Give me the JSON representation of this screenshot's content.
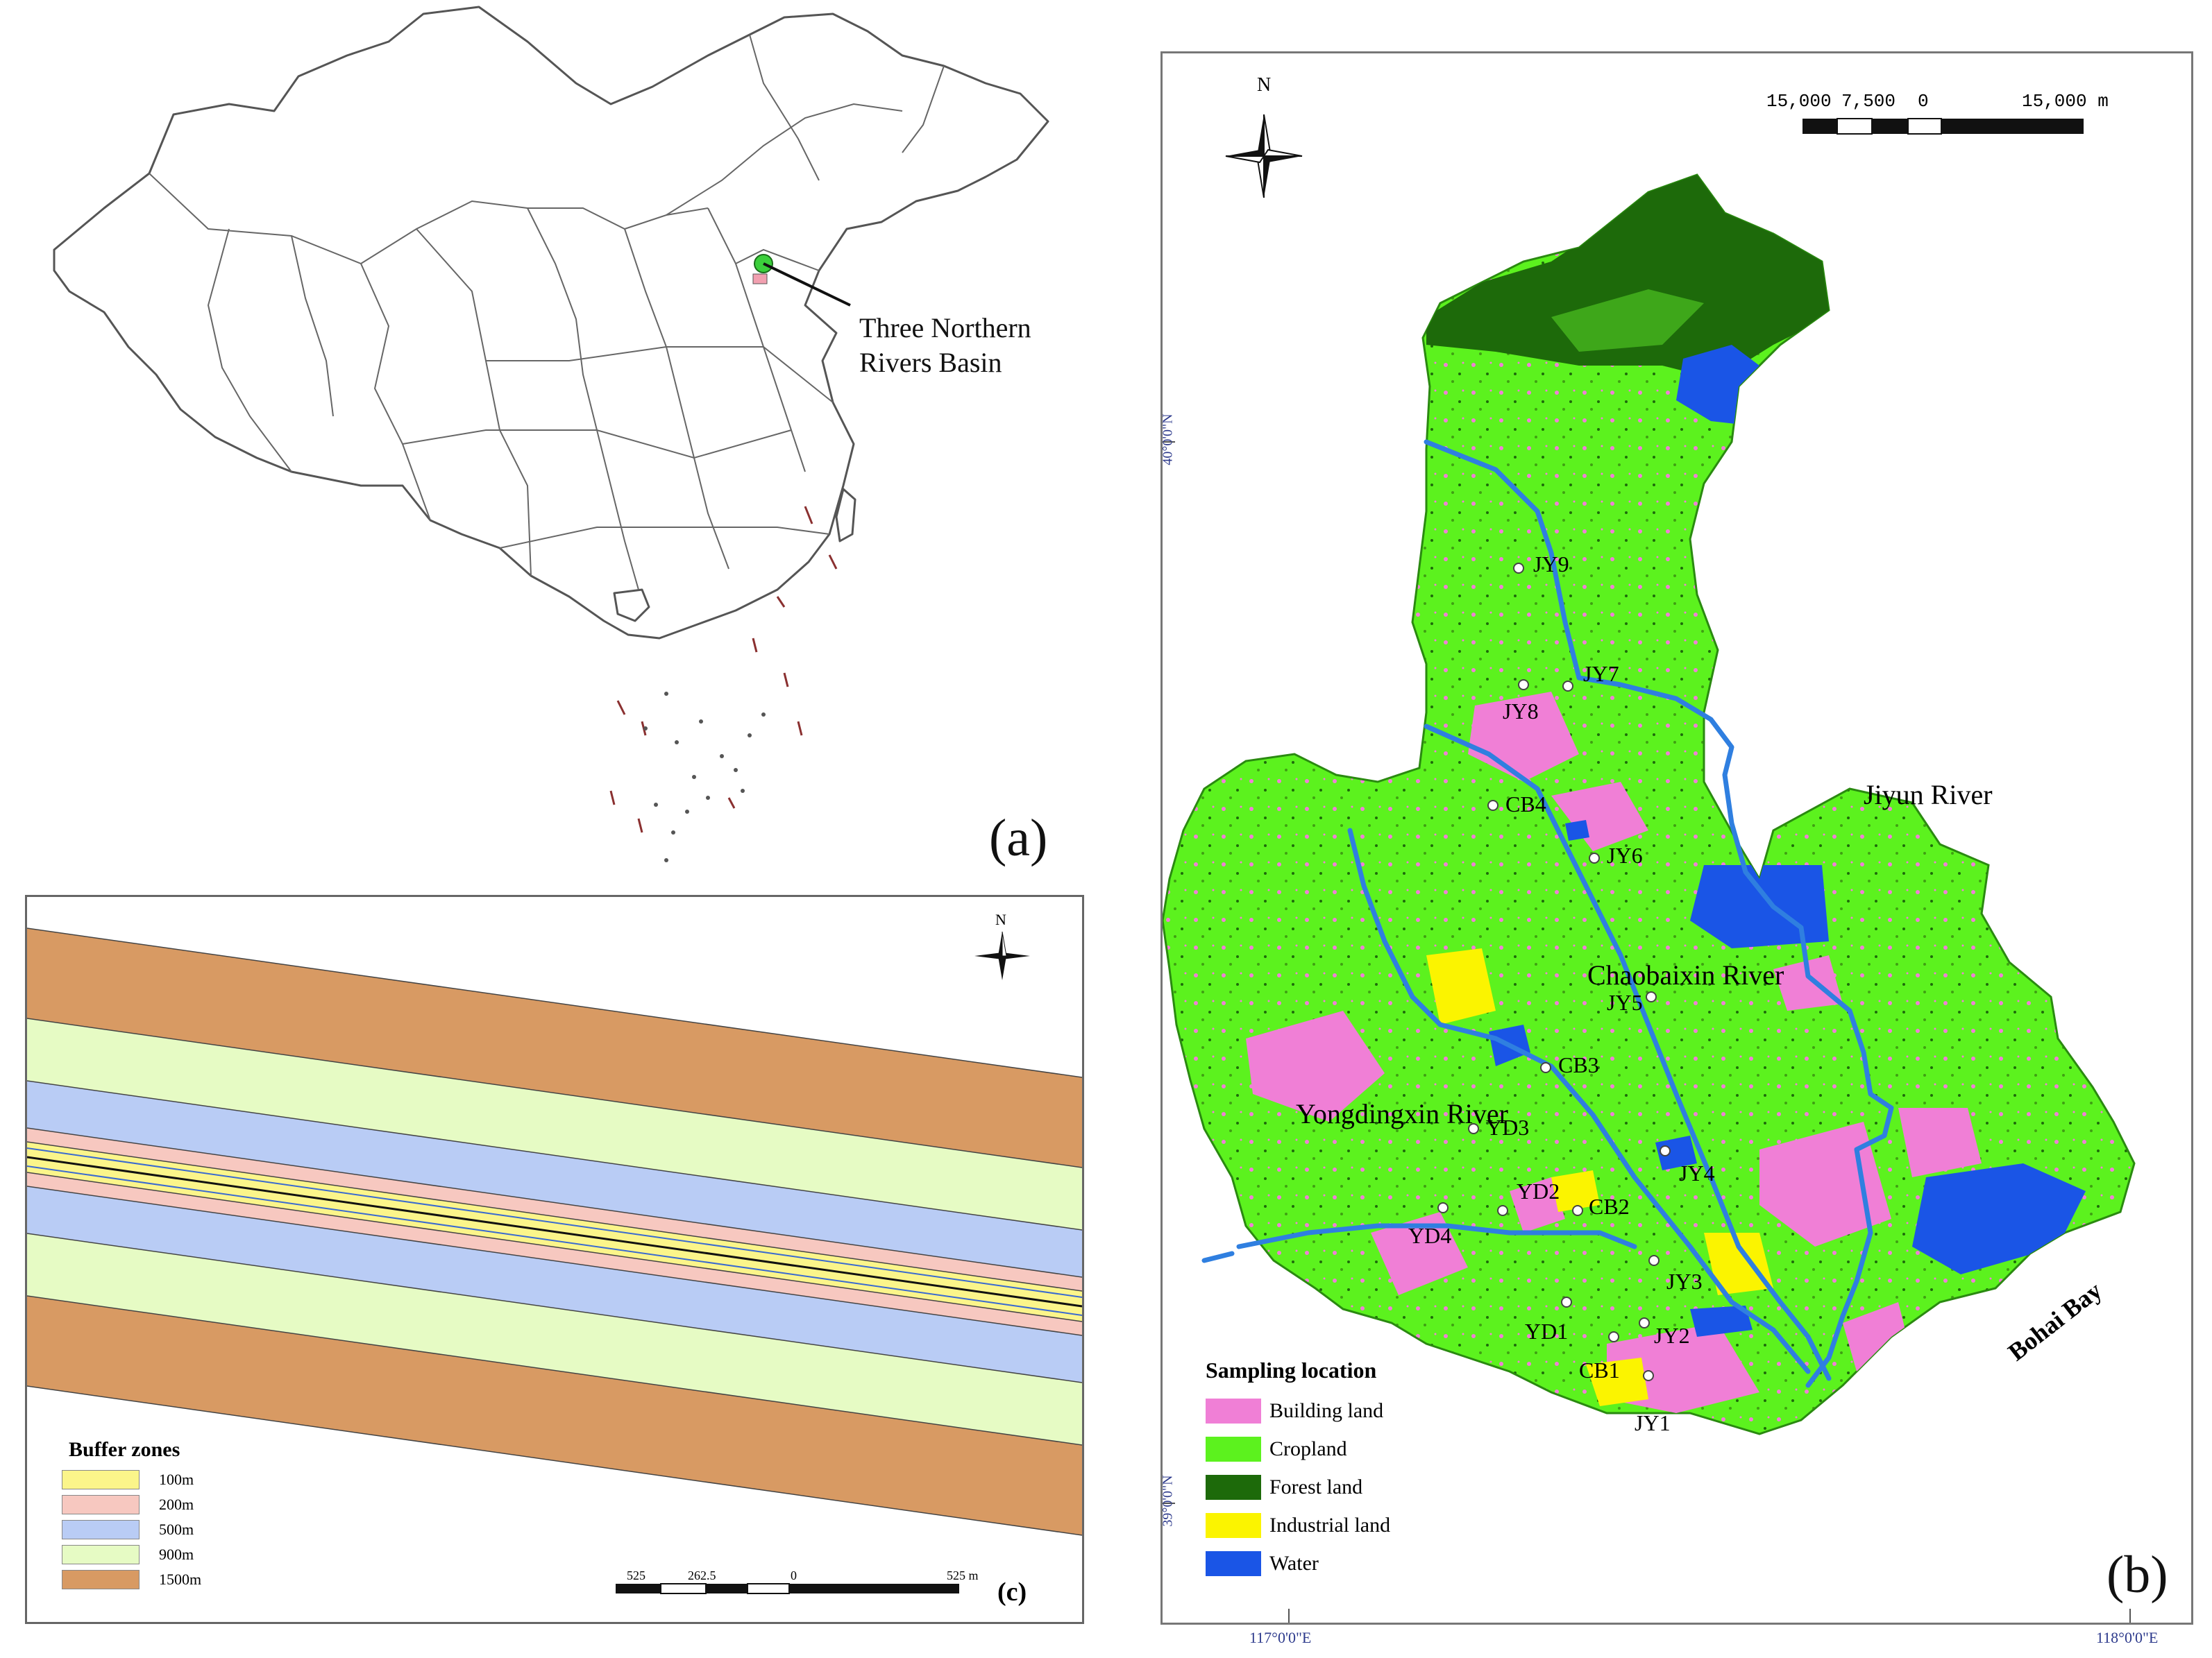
{
  "panel_a": {
    "label": "(a)",
    "annotation_line1": "Three Northern",
    "annotation_line2": "Rivers Basin"
  },
  "panel_b": {
    "label": "(b)",
    "north": "N",
    "scale_labels": [
      "15,000",
      "7,500",
      "0",
      "15,000 m"
    ],
    "lat_labels": [
      "40°0'0\"N",
      "39°0'0\"N"
    ],
    "lon_labels": [
      "117°0'0\"E",
      "118°0'0\"E"
    ],
    "rivers": [
      "Jiyun River",
      "Chaobaixin River",
      "Yongdingxin River"
    ],
    "bay": "Bohai Bay",
    "sites": [
      "JY9",
      "JY7",
      "JY8",
      "CB4",
      "JY6",
      "JY5",
      "CB3",
      "YD3",
      "YD2",
      "CB2",
      "JY4",
      "YD4",
      "JY3",
      "YD1",
      "JY2",
      "CB1",
      "JY1"
    ],
    "legend": {
      "title": "Sampling location",
      "items": [
        {
          "label": "Building land",
          "color": "#f07fd6"
        },
        {
          "label": "Cropland",
          "color": "#5cf21e"
        },
        {
          "label": "Forest land",
          "color": "#1d6a0a"
        },
        {
          "label": "Industrial land",
          "color": "#fbf400"
        },
        {
          "label": "Water",
          "color": "#1a55e6"
        }
      ]
    }
  },
  "panel_c": {
    "label": "(c)",
    "north": "N",
    "scale_labels": [
      "525",
      "262.5",
      "0",
      "525 m"
    ],
    "legend": {
      "title": "Buffer zones",
      "items": [
        {
          "label": "100m",
          "color": "#fbf58a"
        },
        {
          "label": "200m",
          "color": "#f7c8c0"
        },
        {
          "label": "500m",
          "color": "#b9ccf5"
        },
        {
          "label": "900m",
          "color": "#e6fbc4"
        },
        {
          "label": "1500m",
          "color": "#d89a63"
        }
      ]
    }
  }
}
